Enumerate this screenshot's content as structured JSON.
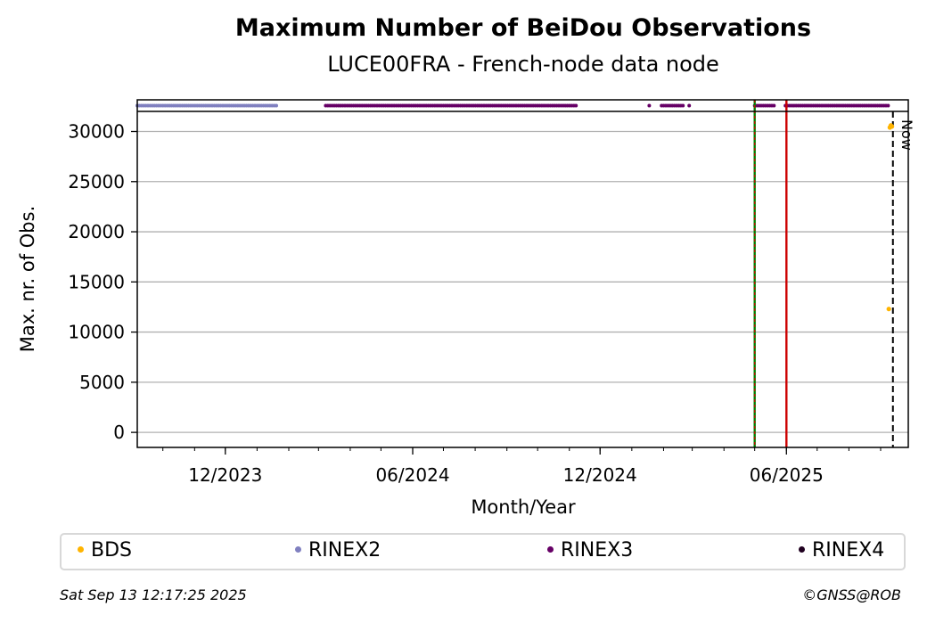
{
  "header": {
    "title": "Maximum Number of BeiDou Observations",
    "subtitle": "LUCE00FRA - French-node data node"
  },
  "footer": {
    "timestamp": "Sat Sep 13 12:17:25 2025",
    "credit": "©GNSS@ROB"
  },
  "legend": [
    {
      "label": "BDS",
      "color": "#ffb400"
    },
    {
      "label": "RINEX2",
      "color": "#8080c0"
    },
    {
      "label": "RINEX3",
      "color": "#660066"
    },
    {
      "label": "RINEX4",
      "color": "#200020"
    }
  ],
  "colors": {
    "bds": "#ffb400",
    "rinex2": "#8080c0",
    "rinex3": "#660066",
    "rinex4": "#200020",
    "green_line": "#008000",
    "red_line": "#cc0000",
    "grid": "#b0b0b0"
  },
  "chart_data": {
    "type": "scatter",
    "xlabel": "Month/Year",
    "ylabel": "Max. nr. of Obs.",
    "x_tick_labels": [
      "12/2023",
      "06/2024",
      "12/2024",
      "06/2025"
    ],
    "x_ticks": [
      "2023-12-01",
      "2024-06-01",
      "2024-12-01",
      "2025-06-01"
    ],
    "xlim": [
      "2023-09-06",
      "2025-09-28"
    ],
    "y_ticks": [
      0,
      5000,
      10000,
      15000,
      20000,
      25000,
      30000
    ],
    "ylim": [
      -1500,
      32000
    ],
    "grid": "horizontal",
    "legend_position": "bottom",
    "series": [
      {
        "name": "BDS",
        "points": [
          {
            "x": "2025-09-10",
            "y": 30400
          },
          {
            "x": "2025-09-11",
            "y": 30600
          },
          {
            "x": "2025-09-12",
            "y": 30500
          },
          {
            "x": "2025-09-09",
            "y": 12300
          }
        ]
      },
      {
        "name": "RINEX2",
        "ranges": [
          {
            "start": "2023-09-06",
            "end": "2024-01-20"
          }
        ]
      },
      {
        "name": "RINEX3",
        "ranges": [
          {
            "start": "2024-03-08",
            "end": "2024-11-08"
          },
          {
            "start": "2025-01-18",
            "end": "2025-01-18"
          },
          {
            "start": "2025-01-30",
            "end": "2025-02-21"
          },
          {
            "start": "2025-02-26",
            "end": "2025-02-28"
          },
          {
            "start": "2025-05-01",
            "end": "2025-05-20"
          },
          {
            "start": "2025-05-31",
            "end": "2025-09-10"
          }
        ]
      },
      {
        "name": "RINEX4",
        "ranges": []
      }
    ],
    "vertical_lines": [
      {
        "x": "2025-05-01",
        "style": "green-red-dashed"
      },
      {
        "x": "2025-06-01",
        "style": "red-solid"
      },
      {
        "x": "2025-09-13",
        "style": "black-dashed",
        "label": "Now"
      }
    ]
  }
}
